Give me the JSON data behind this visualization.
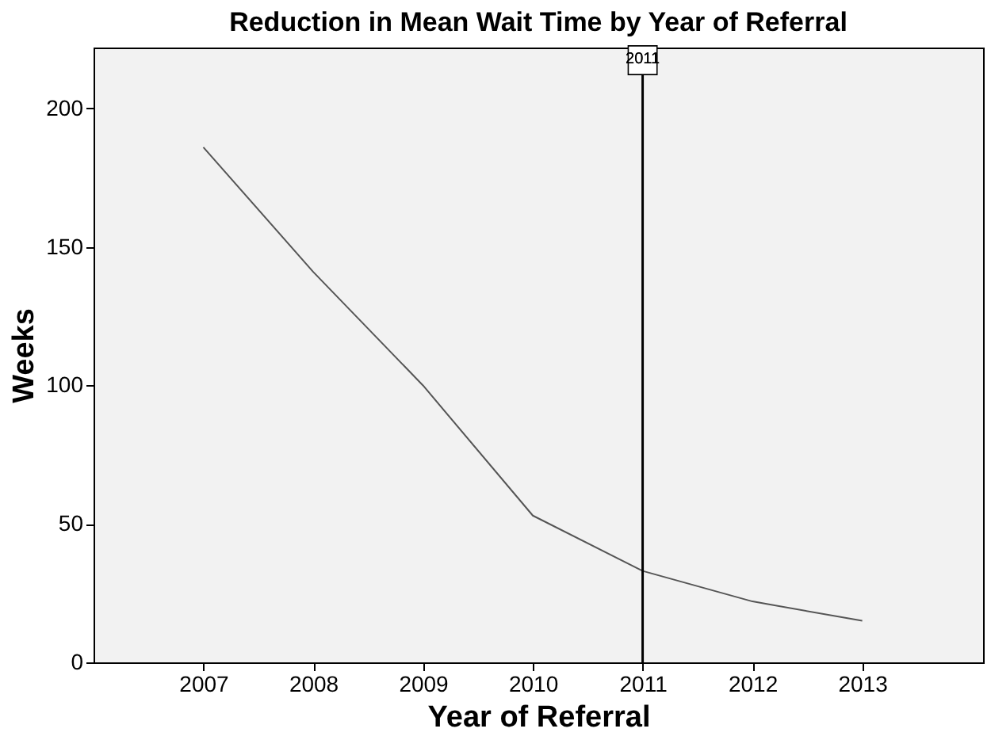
{
  "chart_data": {
    "type": "line",
    "title": "Reduction in Mean Wait Time by Year of Referral",
    "xlabel": "Year of Referral",
    "ylabel": "Weeks",
    "x": [
      2007,
      2008,
      2009,
      2010,
      2011,
      2012,
      2013
    ],
    "series": [
      {
        "color": "#555555",
        "values": [
          186,
          141,
          100,
          53,
          33,
          22,
          15
        ]
      }
    ],
    "xlim": [
      2006,
      2014.1
    ],
    "xticks": [
      2007,
      2008,
      2009,
      2010,
      2011,
      2012,
      2013
    ],
    "ylim": [
      0,
      222
    ],
    "yticks": [
      0,
      50,
      100,
      150,
      200
    ],
    "ref_lines": [
      {
        "axis": "x",
        "value": 2011,
        "label": "2011",
        "color": "#000000"
      }
    ],
    "grid": false,
    "marker": "none",
    "line_style": "solid"
  }
}
